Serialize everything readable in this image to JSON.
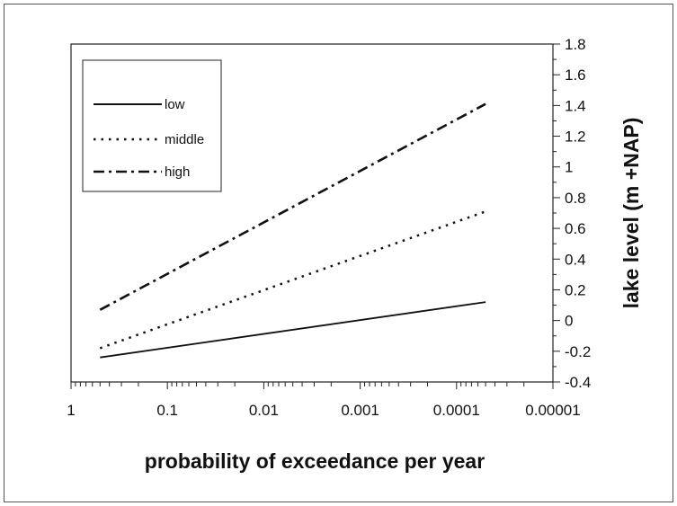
{
  "chart_data": {
    "type": "line",
    "title": "",
    "xlabel": "probability of exceedance per year",
    "ylabel": "lake level (m +NAP)",
    "x_scale": "log-reversed",
    "xlim": [
      1,
      1e-05
    ],
    "ylim": [
      -0.4,
      1.8
    ],
    "x_ticks": [
      "1",
      "0.1",
      "0.01",
      "0.001",
      "0.0001",
      "0.00001"
    ],
    "y_ticks": [
      "-0.4",
      "-0.2",
      "0",
      "0.2",
      "0.4",
      "0.6",
      "0.8",
      "1",
      "1.2",
      "1.4",
      "1.6",
      "1.8"
    ],
    "y_axis_side": "right",
    "legend_position": "top-left",
    "grid": false,
    "series": [
      {
        "name": "low",
        "style": "solid",
        "x": [
          0.5,
          5e-05
        ],
        "y": [
          -0.24,
          0.12
        ]
      },
      {
        "name": "middle",
        "style": "dotted",
        "x": [
          0.5,
          5e-05
        ],
        "y": [
          -0.18,
          0.71
        ]
      },
      {
        "name": "high",
        "style": "dash-dot",
        "x": [
          0.5,
          5e-05
        ],
        "y": [
          0.07,
          1.41
        ]
      }
    ]
  }
}
